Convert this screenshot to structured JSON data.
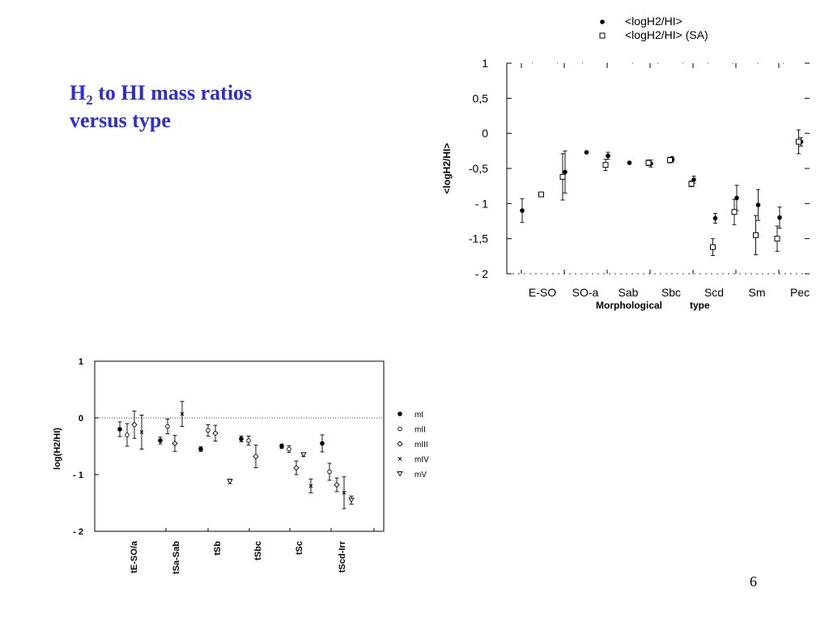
{
  "slide": {
    "title_part1": "H",
    "title_sub": "2",
    "title_part2": " to HI mass ratios",
    "title_line2": "versus type",
    "page_number": "6",
    "accent_color": "#2d2ed6"
  },
  "chart_data": [
    {
      "type": "scatter",
      "xlabel": "Morphological type",
      "ylabel": "<logH2/HI>",
      "categories": [
        "E-SO",
        "SO-a",
        "Sab",
        "Sbc",
        "Scd",
        "Sm",
        "Pec"
      ],
      "y_ticks": [
        "1",
        "0,5",
        "0",
        "-0,5",
        "- 1",
        "-1,5",
        "- 2"
      ],
      "ylim": [
        -2,
        1
      ],
      "legend_position": "top",
      "grid": false,
      "series": [
        {
          "name": "<logH2/HI>",
          "marker": "filled-circle",
          "x": [
            -0.5,
            0.5,
            1.0,
            1.5,
            2.0,
            2.5,
            3.0,
            3.5,
            4.0,
            4.5,
            5.0,
            5.5,
            6.0
          ],
          "y": [
            -1.1,
            -0.55,
            -0.27,
            -0.32,
            -0.42,
            -0.43,
            -0.37,
            -0.66,
            -1.21,
            -0.92,
            -1.02,
            -1.2,
            -0.12
          ],
          "err": [
            0.17,
            0.3,
            0,
            0.05,
            0,
            0.05,
            0.04,
            0.05,
            0.07,
            0.18,
            0.22,
            0.15,
            0.06
          ]
        },
        {
          "name": "<logH2/HI>  (SA)",
          "marker": "open-square",
          "x": [
            0.0,
            0.5,
            1.5,
            2.5,
            3.0,
            3.5,
            4.0,
            4.5,
            5.0,
            5.5,
            6.0
          ],
          "y": [
            -0.87,
            -0.62,
            -0.45,
            -0.42,
            -0.38,
            -0.72,
            -1.62,
            -1.12,
            -1.45,
            -1.5,
            -0.12
          ],
          "err": [
            0,
            0.33,
            0.08,
            0.04,
            0.04,
            0.04,
            0.12,
            0.18,
            0.28,
            0.18,
            0.17
          ]
        }
      ]
    },
    {
      "type": "scatter",
      "xlabel": "",
      "ylabel": "log(H2/HI)",
      "categories": [
        "tE-SO/a",
        "tSa-Sab",
        "tSb",
        "tSbc",
        "tSc",
        "tScd-Irr"
      ],
      "y_ticks": [
        "1",
        "0",
        "- 1",
        "- 2"
      ],
      "ylim": [
        -2,
        1
      ],
      "reference_line_y": 0,
      "legend_position": "right",
      "grid": false,
      "series": [
        {
          "name": "mI",
          "marker": "filled-circle",
          "x": [
            0.0,
            1.0,
            2.0,
            3.0,
            4.0,
            5.0
          ],
          "y": [
            -0.2,
            -0.4,
            -0.55,
            -0.37,
            -0.5,
            -0.45
          ],
          "err": [
            0.13,
            0.06,
            0.04,
            0.05,
            0.04,
            0.15
          ]
        },
        {
          "name": "mII",
          "marker": "open-circle",
          "x": [
            0.18,
            1.18,
            2.18,
            3.18,
            4.18,
            5.18
          ],
          "y": [
            -0.3,
            -0.15,
            -0.22,
            -0.4,
            -0.55,
            -0.95
          ],
          "err": [
            0.2,
            0.13,
            0.1,
            0.08,
            0.06,
            0.15
          ]
        },
        {
          "name": "mIII",
          "marker": "open-diamond",
          "x": [
            0.36,
            1.36,
            2.36,
            3.36,
            4.36,
            5.36
          ],
          "y": [
            -0.12,
            -0.45,
            -0.27,
            -0.68,
            -0.88,
            -1.18
          ],
          "err": [
            0.24,
            0.14,
            0.14,
            0.2,
            0.12,
            0.12
          ]
        },
        {
          "name": "mIV",
          "marker": "cross",
          "x": [
            0.54,
            1.54,
            4.72,
            5.54
          ],
          "y": [
            -0.25,
            0.07,
            -1.2,
            -1.32
          ],
          "err": [
            0.3,
            0.22,
            0.12,
            0.28
          ]
        },
        {
          "name": "mV",
          "marker": "open-triangle-down",
          "x": [
            2.72,
            4.54,
            5.72
          ],
          "y": [
            -1.12,
            -0.65,
            -1.45
          ],
          "err": [
            0.04,
            0.03,
            0.07
          ]
        }
      ]
    }
  ]
}
